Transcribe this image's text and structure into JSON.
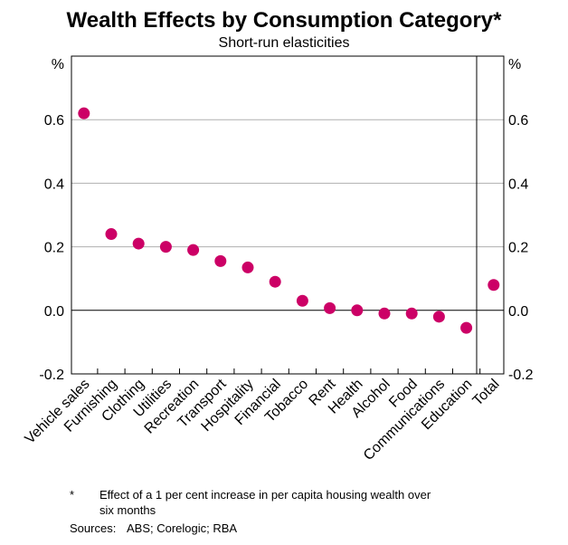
{
  "chart_data": {
    "type": "scatter",
    "title": "Wealth Effects by Consumption Category",
    "title_mark": "*",
    "subtitle": "Short-run elasticities",
    "unit_left": "%",
    "unit_right": "%",
    "categories": [
      "Vehicle sales",
      "Furnishing",
      "Clothing",
      "Utilities",
      "Recreation",
      "Transport",
      "Hospitality",
      "Financial",
      "Tobacco",
      "Rent",
      "Health",
      "Alcohol",
      "Food",
      "Communications",
      "Education",
      "Total"
    ],
    "values": [
      0.62,
      0.24,
      0.21,
      0.2,
      0.19,
      0.155,
      0.135,
      0.09,
      0.03,
      0.007,
      0.0,
      -0.01,
      -0.01,
      -0.02,
      -0.055,
      0.08
    ],
    "ylim": [
      -0.2,
      0.8
    ],
    "yticks": [
      -0.2,
      0.0,
      0.2,
      0.4,
      0.6
    ],
    "ytick_labels": [
      "-0.2",
      "0.0",
      "0.2",
      "0.4",
      "0.6"
    ],
    "grid": true,
    "marker_color": "#cc0066"
  },
  "footnote": {
    "marker": "*",
    "text_line1": "Effect of a 1 per cent increase in per capita housing wealth over",
    "text_line2": "six months"
  },
  "sources": {
    "label": "Sources:",
    "text": "ABS; Corelogic; RBA"
  }
}
